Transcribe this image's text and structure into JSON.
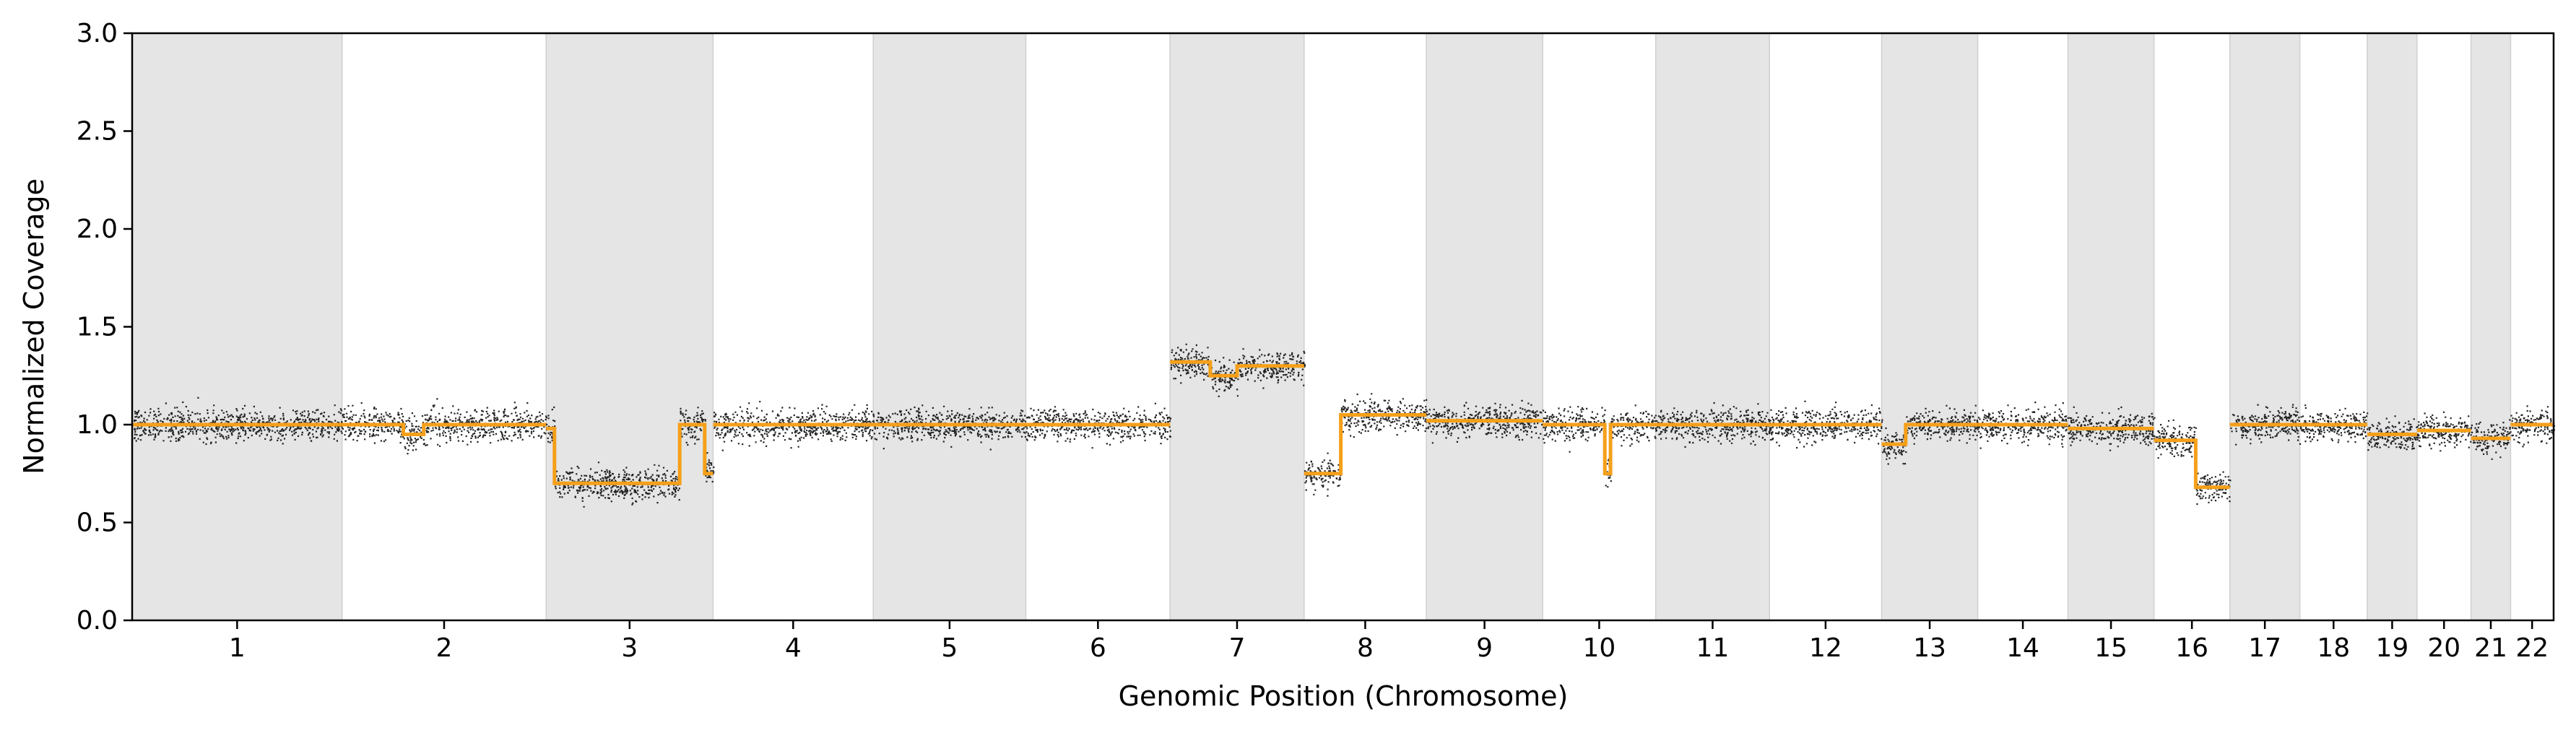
{
  "chart_data": {
    "type": "scatter",
    "xlabel": "Genomic Position (Chromosome)",
    "ylabel": "Normalized Coverage",
    "ylim": [
      0,
      3.0
    ],
    "yticks": [
      0.0,
      0.5,
      1.0,
      1.5,
      2.0,
      2.5,
      3.0
    ],
    "ytick_labels": [
      "0.0",
      "0.5",
      "1.0",
      "1.5",
      "2.0",
      "2.5",
      "3.0"
    ],
    "grid": false,
    "legend": "none",
    "shading": "alternating chromosomes shaded gray",
    "colors": {
      "points": "#000000",
      "segments": "#f5a01a",
      "shade": "#e5e5e5"
    },
    "chromosomes": [
      {
        "label": "1",
        "length": 249,
        "shaded": true,
        "segments": [
          {
            "start": 0.0,
            "end": 0.5,
            "value": 1.0
          },
          {
            "start": 0.5,
            "end": 1.0,
            "value": 1.0
          }
        ]
      },
      {
        "label": "2",
        "length": 242,
        "shaded": false,
        "segments": [
          {
            "start": 0.0,
            "end": 0.3,
            "value": 1.0
          },
          {
            "start": 0.3,
            "end": 0.4,
            "value": 0.95
          },
          {
            "start": 0.4,
            "end": 1.0,
            "value": 1.0
          }
        ]
      },
      {
        "label": "3",
        "length": 198,
        "shaded": true,
        "segments": [
          {
            "start": 0.0,
            "end": 0.05,
            "value": 0.98
          },
          {
            "start": 0.05,
            "end": 0.8,
            "value": 0.7
          },
          {
            "start": 0.8,
            "end": 0.95,
            "value": 1.0
          },
          {
            "start": 0.95,
            "end": 1.0,
            "value": 0.75
          }
        ]
      },
      {
        "label": "4",
        "length": 190,
        "shaded": false,
        "segments": [
          {
            "start": 0.0,
            "end": 1.0,
            "value": 1.0
          }
        ]
      },
      {
        "label": "5",
        "length": 181,
        "shaded": true,
        "segments": [
          {
            "start": 0.0,
            "end": 1.0,
            "value": 1.0
          }
        ]
      },
      {
        "label": "6",
        "length": 171,
        "shaded": false,
        "segments": [
          {
            "start": 0.0,
            "end": 1.0,
            "value": 1.0
          }
        ]
      },
      {
        "label": "7",
        "length": 159,
        "shaded": true,
        "segments": [
          {
            "start": 0.0,
            "end": 0.3,
            "value": 1.32
          },
          {
            "start": 0.3,
            "end": 0.5,
            "value": 1.25
          },
          {
            "start": 0.5,
            "end": 1.0,
            "value": 1.3
          }
        ]
      },
      {
        "label": "8",
        "length": 145,
        "shaded": false,
        "segments": [
          {
            "start": 0.0,
            "end": 0.3,
            "value": 0.75
          },
          {
            "start": 0.3,
            "end": 1.0,
            "value": 1.05
          }
        ]
      },
      {
        "label": "9",
        "length": 138,
        "shaded": true,
        "segments": [
          {
            "start": 0.0,
            "end": 1.0,
            "value": 1.02
          }
        ]
      },
      {
        "label": "10",
        "length": 134,
        "shaded": false,
        "segments": [
          {
            "start": 0.0,
            "end": 0.55,
            "value": 1.0
          },
          {
            "start": 0.55,
            "end": 0.6,
            "value": 0.75
          },
          {
            "start": 0.6,
            "end": 1.0,
            "value": 1.0
          }
        ]
      },
      {
        "label": "11",
        "length": 135,
        "shaded": true,
        "segments": [
          {
            "start": 0.0,
            "end": 1.0,
            "value": 1.0
          }
        ]
      },
      {
        "label": "12",
        "length": 133,
        "shaded": false,
        "segments": [
          {
            "start": 0.0,
            "end": 1.0,
            "value": 1.0
          }
        ]
      },
      {
        "label": "13",
        "length": 114,
        "shaded": true,
        "segments": [
          {
            "start": 0.0,
            "end": 0.25,
            "value": 0.9
          },
          {
            "start": 0.25,
            "end": 1.0,
            "value": 1.0
          }
        ]
      },
      {
        "label": "14",
        "length": 107,
        "shaded": false,
        "segments": [
          {
            "start": 0.0,
            "end": 1.0,
            "value": 1.0
          }
        ]
      },
      {
        "label": "15",
        "length": 102,
        "shaded": true,
        "segments": [
          {
            "start": 0.0,
            "end": 1.0,
            "value": 0.98
          }
        ]
      },
      {
        "label": "16",
        "length": 90,
        "shaded": false,
        "segments": [
          {
            "start": 0.0,
            "end": 0.55,
            "value": 0.92
          },
          {
            "start": 0.55,
            "end": 1.0,
            "value": 0.68
          }
        ]
      },
      {
        "label": "17",
        "length": 83,
        "shaded": true,
        "segments": [
          {
            "start": 0.0,
            "end": 1.0,
            "value": 1.0
          }
        ]
      },
      {
        "label": "18",
        "length": 80,
        "shaded": false,
        "segments": [
          {
            "start": 0.0,
            "end": 1.0,
            "value": 1.0
          }
        ]
      },
      {
        "label": "19",
        "length": 59,
        "shaded": true,
        "segments": [
          {
            "start": 0.0,
            "end": 1.0,
            "value": 0.95
          }
        ]
      },
      {
        "label": "20",
        "length": 64,
        "shaded": false,
        "segments": [
          {
            "start": 0.0,
            "end": 1.0,
            "value": 0.97
          }
        ]
      },
      {
        "label": "21",
        "length": 47,
        "shaded": true,
        "segments": [
          {
            "start": 0.0,
            "end": 1.0,
            "value": 0.93
          }
        ]
      },
      {
        "label": "22",
        "length": 51,
        "shaded": false,
        "segments": [
          {
            "start": 0.0,
            "end": 1.0,
            "value": 1.0
          }
        ]
      }
    ]
  }
}
